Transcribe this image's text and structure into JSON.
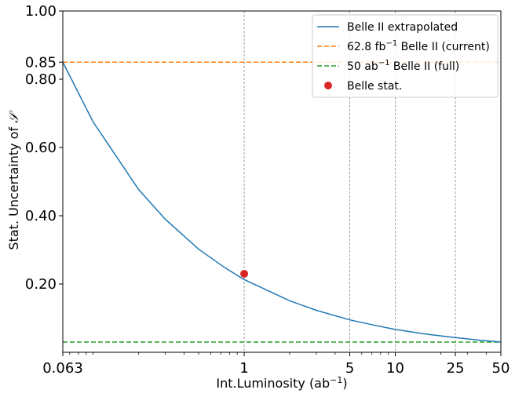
{
  "chart_data": {
    "type": "line",
    "title": "",
    "xlabel": {
      "base": "Int.Luminosity (ab",
      "sup": "−1",
      "end": ")"
    },
    "ylabel": {
      "text": "Stat. Uncertainty of ",
      "symbol": "𝒮"
    },
    "x_scale": "log",
    "xlim": [
      0.063,
      50
    ],
    "ylim": [
      0.0,
      1.0
    ],
    "x_ticks": [
      {
        "value": 0.063,
        "label": "0.063"
      },
      {
        "value": 1,
        "label": "1"
      },
      {
        "value": 5,
        "label": "5"
      },
      {
        "value": 10,
        "label": "10"
      },
      {
        "value": 25,
        "label": "25"
      },
      {
        "value": 50,
        "label": "50"
      }
    ],
    "y_ticks": [
      {
        "value": 0.2,
        "label": "0.20"
      },
      {
        "value": 0.4,
        "label": "0.40"
      },
      {
        "value": 0.6,
        "label": "0.60"
      },
      {
        "value": 0.8,
        "label": "0.80"
      },
      {
        "value": 0.85,
        "label": "0.85"
      },
      {
        "value": 1.0,
        "label": "1.00"
      }
    ],
    "vertical_gridlines_at": [
      1,
      5,
      10,
      25
    ],
    "series": [
      {
        "name": "Belle II extrapolated",
        "style": "solid",
        "color": "#1f77b4",
        "x": [
          0.063,
          0.1,
          0.2,
          0.3,
          0.5,
          0.75,
          1,
          2,
          3,
          5,
          7.5,
          10,
          15,
          20,
          25,
          35,
          50
        ],
        "y": [
          0.85,
          0.675,
          0.477,
          0.39,
          0.302,
          0.247,
          0.213,
          0.151,
          0.123,
          0.095,
          0.078,
          0.067,
          0.055,
          0.048,
          0.043,
          0.036,
          0.03
        ]
      },
      {
        "name": "62.8 fb⁻¹ Belle II (current)",
        "legend": {
          "pre": "62.8 fb",
          "sup": "−1",
          "post": " Belle II (current)"
        },
        "style": "dashed",
        "color": "#ff7f0e",
        "y_constant": 0.85
      },
      {
        "name": "50 ab⁻¹ Belle II (full)",
        "legend": {
          "pre": "50 ab",
          "sup": "−1",
          "post": " Belle II (full)"
        },
        "style": "dashed",
        "color": "#2ca02c",
        "y_constant": 0.03
      },
      {
        "name": "Belle stat.",
        "style": "marker",
        "color": "#d62728",
        "x": [
          1.0
        ],
        "y": [
          0.23
        ]
      }
    ],
    "legend_position": "top-right"
  }
}
